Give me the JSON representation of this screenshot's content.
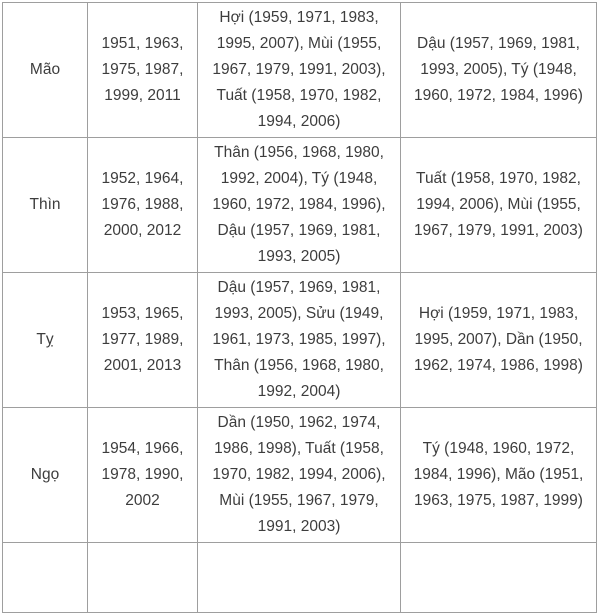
{
  "theme": {
    "background": "#ffffff",
    "border_color": "#9e9e9e",
    "text_color": "#3d3d3d"
  },
  "table": {
    "rows": [
      {
        "zodiac": "Mão",
        "years": "1951, 1963, 1975, 1987, 1999, 2011",
        "group1": "Hợi (1959, 1971, 1983, 1995, 2007), Mùi (1955, 1967, 1979, 1991, 2003), Tuất (1958, 1970, 1982, 1994, 2006)",
        "group2": "Dậu (1957, 1969, 1981, 1993, 2005), Tý (1948, 1960, 1972, 1984, 1996)"
      },
      {
        "zodiac": "Thìn",
        "years": "1952, 1964, 1976, 1988, 2000, 2012",
        "group1": "Thân (1956, 1968, 1980, 1992, 2004), Tý (1948, 1960, 1972, 1984, 1996), Dậu (1957, 1969, 1981, 1993, 2005)",
        "group2": "Tuất (1958, 1970, 1982, 1994, 2006), Mùi (1955, 1967, 1979, 1991, 2003)"
      },
      {
        "zodiac": "Tỵ",
        "years": "1953, 1965, 1977, 1989, 2001, 2013",
        "group1": "Dậu (1957, 1969, 1981, 1993, 2005), Sửu (1949, 1961, 1973, 1985, 1997), Thân (1956, 1968, 1980, 1992, 2004)",
        "group2": "Hợi (1959, 1971, 1983, 1995, 2007), Dần (1950, 1962, 1974, 1986, 1998)"
      },
      {
        "zodiac": "Ngọ",
        "years": "1954, 1966, 1978, 1990, 2002",
        "group1": "Dần (1950, 1962, 1974, 1986, 1998), Tuất (1958, 1970, 1982, 1994, 2006), Mùi (1955, 1967, 1979, 1991, 2003)",
        "group2": "Tý (1948, 1960, 1972, 1984, 1996), Mão (1951, 1963, 1975, 1987, 1999)"
      }
    ]
  }
}
